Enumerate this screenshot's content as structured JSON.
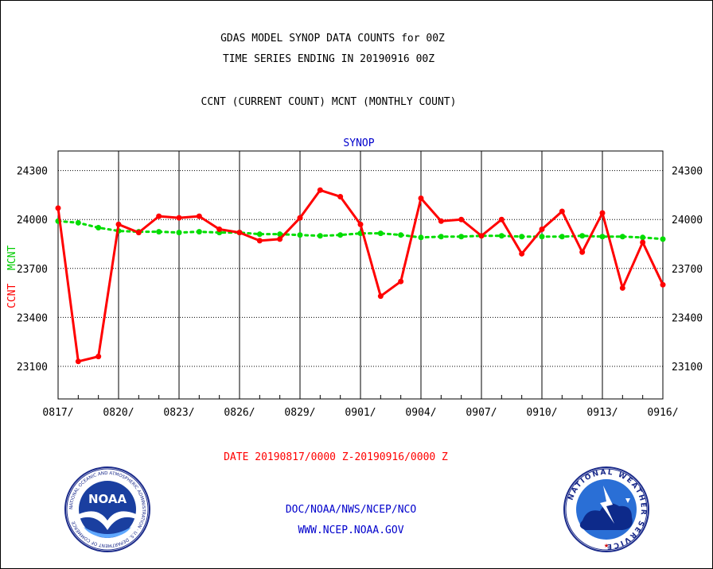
{
  "header": {
    "line1": "GDAS MODEL SYNOP DATA COUNTS for 00Z",
    "line2": "TIME SERIES ENDING IN 20190916 00Z",
    "line3": "CCNT (CURRENT COUNT) MCNT (MONTHLY COUNT)"
  },
  "footer": {
    "date_range": "DATE 20190817/0000 Z-20190916/0000 Z",
    "org": "DOC/NOAA/NWS/NCEP/NCO",
    "url": "WWW.NCEP.NOAA.GOV"
  },
  "logos": {
    "noaa_text": "NOAA",
    "noaa_ring": "NATIONAL OCEANIC AND ATMOSPHERIC ADMINISTRATION · U.S. DEPARTMENT OF COMMERCE",
    "nws_ring": "NATIONAL WEATHER SERVICE"
  },
  "colors": {
    "ccnt": "#ff0000",
    "mcnt": "#00dd00",
    "title": "#0000cc"
  },
  "chart_data": {
    "type": "line",
    "title": "SYNOP",
    "ylabel_ccnt": "CCNT",
    "ylabel_mcnt": "MCNT",
    "ylim": [
      22900,
      24420
    ],
    "yticks": [
      23100,
      23400,
      23700,
      24000,
      24300
    ],
    "ytick_labels": [
      "23100",
      "23400",
      "23700",
      "24000",
      "24300"
    ],
    "xlim": [
      0,
      30
    ],
    "xticks": [
      0,
      3,
      6,
      9,
      12,
      15,
      18,
      21,
      24,
      27,
      30
    ],
    "xtick_labels": [
      "0817/",
      "0820/",
      "0823/",
      "0826/",
      "0829/",
      "0901/",
      "0904/",
      "0907/",
      "0910/",
      "0913/",
      "0916/"
    ],
    "grid": true,
    "series": [
      {
        "name": "CCNT",
        "x": [
          0,
          1,
          2,
          3,
          4,
          5,
          6,
          7,
          8,
          9,
          10,
          11,
          12,
          13,
          14,
          15,
          16,
          17,
          18,
          19,
          20,
          21,
          22,
          23,
          24,
          25,
          26,
          27,
          28,
          29,
          30
        ],
        "values": [
          24070,
          23130,
          23160,
          23970,
          23920,
          24020,
          24010,
          24020,
          23940,
          23920,
          23870,
          23880,
          24010,
          24180,
          24140,
          23970,
          23530,
          23620,
          24130,
          23990,
          24000,
          23900,
          24000,
          23790,
          23940,
          24050,
          23800,
          24040,
          23580,
          23860,
          23600
        ]
      },
      {
        "name": "MCNT",
        "x": [
          0,
          1,
          2,
          3,
          4,
          5,
          6,
          7,
          8,
          9,
          10,
          11,
          12,
          13,
          14,
          15,
          16,
          17,
          18,
          19,
          20,
          21,
          22,
          23,
          24,
          25,
          26,
          27,
          28,
          29,
          30
        ],
        "values": [
          23990,
          23980,
          23950,
          23930,
          23925,
          23925,
          23920,
          23925,
          23920,
          23920,
          23910,
          23910,
          23905,
          23900,
          23905,
          23915,
          23915,
          23905,
          23890,
          23895,
          23895,
          23900,
          23900,
          23895,
          23895,
          23895,
          23900,
          23895,
          23895,
          23890,
          23880
        ]
      }
    ]
  }
}
